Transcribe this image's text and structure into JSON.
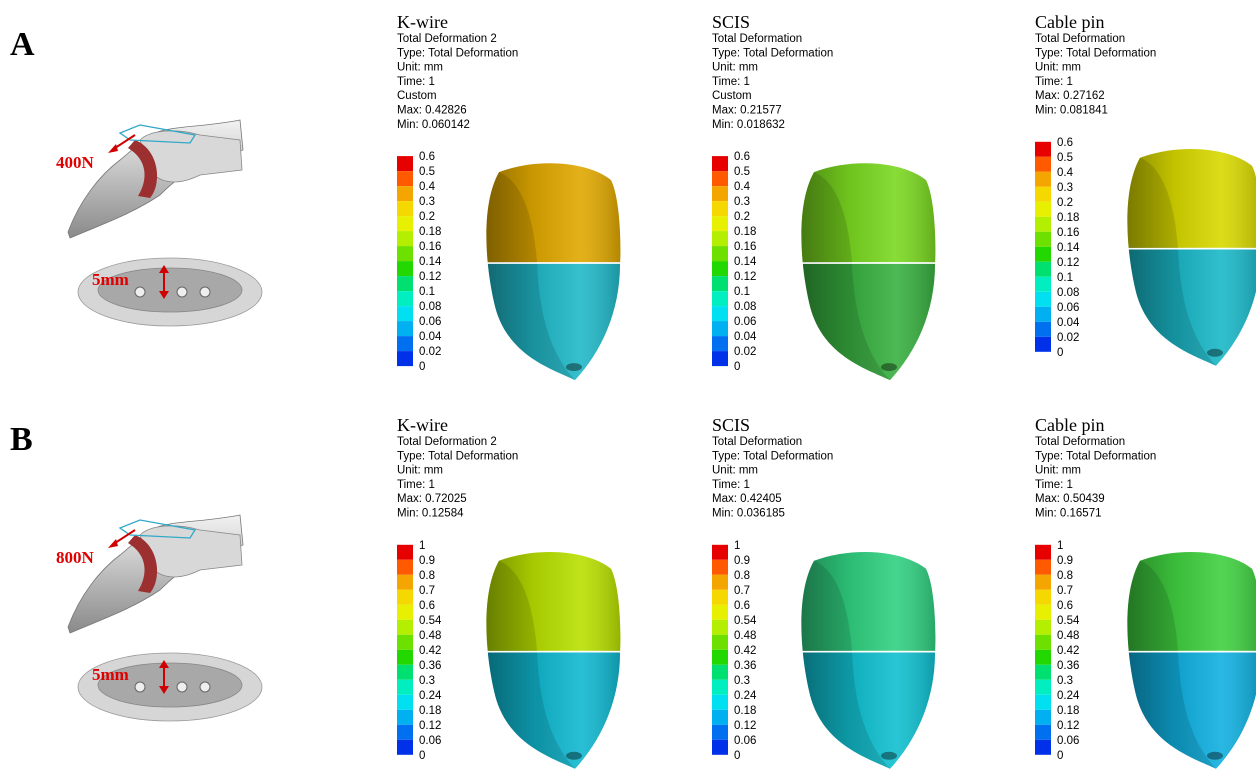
{
  "panels": [
    {
      "label": "A",
      "load": "400N",
      "displacement": "5mm",
      "results": [
        {
          "title": "K-wire",
          "lines": [
            "Total Deformation 2",
            "Type: Total Deformation",
            "Unit: mm",
            "Time: 1",
            "Custom",
            "Max: 0.42826",
            "Min: 0.060142"
          ],
          "legend": [
            "0.6",
            "0.5",
            "0.4",
            "0.3",
            "0.2",
            "0.18",
            "0.16",
            "0.14",
            "0.12",
            "0.1",
            "0.08",
            "0.06",
            "0.04",
            "0.02",
            "0"
          ]
        },
        {
          "title": "SCIS",
          "lines": [
            "Total Deformation",
            "Type: Total Deformation",
            "Unit: mm",
            "Time: 1",
            "Custom",
            "Max: 0.21577",
            "Min: 0.018632"
          ],
          "legend": [
            "0.6",
            "0.5",
            "0.4",
            "0.3",
            "0.2",
            "0.18",
            "0.16",
            "0.14",
            "0.12",
            "0.1",
            "0.08",
            "0.06",
            "0.04",
            "0.02",
            "0"
          ]
        },
        {
          "title": "Cable pin",
          "lines": [
            "Total Deformation",
            "Type: Total Deformation",
            "Unit: mm",
            "Time: 1",
            "Max: 0.27162",
            "Min: 0.081841"
          ],
          "legend": [
            "0.6",
            "0.5",
            "0.4",
            "0.3",
            "0.2",
            "0.18",
            "0.16",
            "0.14",
            "0.12",
            "0.1",
            "0.08",
            "0.06",
            "0.04",
            "0.02",
            "0"
          ]
        }
      ]
    },
    {
      "label": "B",
      "load": "800N",
      "displacement": "5mm",
      "results": [
        {
          "title": "K-wire",
          "lines": [
            "Total Deformation 2",
            "Type: Total Deformation",
            "Unit: mm",
            "Time: 1",
            "Max: 0.72025",
            "Min: 0.12584"
          ],
          "legend": [
            "1",
            "0.9",
            "0.8",
            "0.7",
            "0.6",
            "0.54",
            "0.48",
            "0.42",
            "0.36",
            "0.3",
            "0.24",
            "0.18",
            "0.12",
            "0.06",
            "0"
          ]
        },
        {
          "title": "SCIS",
          "lines": [
            "Total Deformation",
            "Type: Total Deformation",
            "Unit: mm",
            "Time: 1",
            "Max: 0.42405",
            "Min: 0.036185"
          ],
          "legend": [
            "1",
            "0.9",
            "0.8",
            "0.7",
            "0.6",
            "0.54",
            "0.48",
            "0.42",
            "0.36",
            "0.3",
            "0.24",
            "0.18",
            "0.12",
            "0.06",
            "0"
          ]
        },
        {
          "title": "Cable pin",
          "lines": [
            "Total Deformation",
            "Type: Total Deformation",
            "Unit: mm",
            "Time: 1",
            "Max: 0.50439",
            "Min: 0.16571"
          ],
          "legend": [
            "1",
            "0.9",
            "0.8",
            "0.7",
            "0.6",
            "0.54",
            "0.48",
            "0.42",
            "0.36",
            "0.3",
            "0.24",
            "0.18",
            "0.12",
            "0.06",
            "0"
          ]
        }
      ]
    }
  ]
}
